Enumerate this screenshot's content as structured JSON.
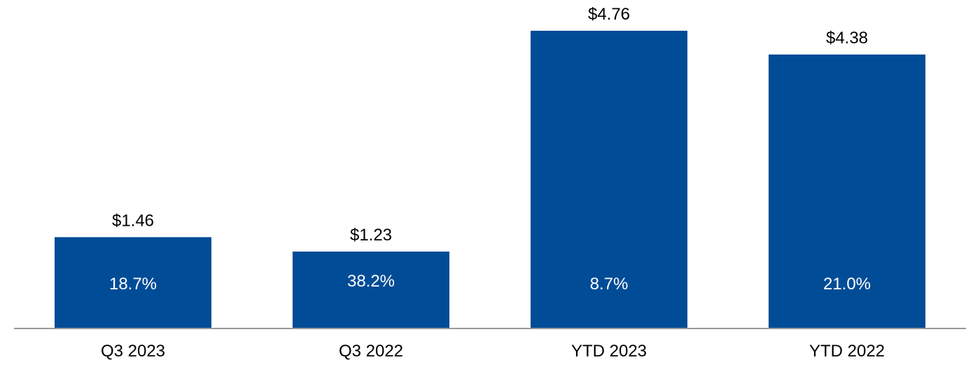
{
  "chart_data": {
    "type": "bar",
    "title": "",
    "xlabel": "",
    "ylabel": "",
    "ylim": [
      0,
      5
    ],
    "categories": [
      "Q3 2023",
      "Q3 2022",
      "YTD 2023",
      "YTD 2022"
    ],
    "values": [
      1.46,
      1.23,
      4.76,
      4.38
    ],
    "value_labels": [
      "$1.46",
      "$1.23",
      "$4.76",
      "$4.38"
    ],
    "inner_labels": [
      "18.7%",
      "38.2%",
      "8.7%",
      "21.0%"
    ],
    "colors": {
      "bar": "#004C97",
      "axis": "#999999"
    }
  }
}
